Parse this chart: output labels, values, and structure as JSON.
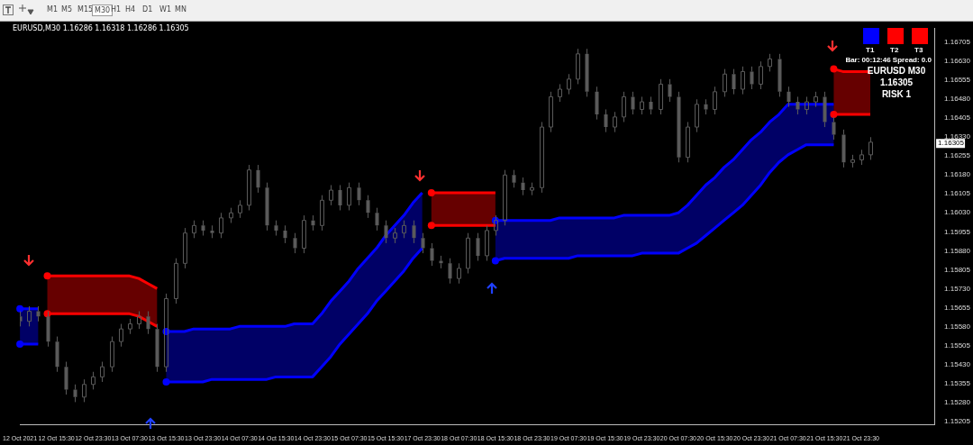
{
  "chart_data": {
    "type": "candlestick",
    "color": "#5a5a5a",
    "categories": [
      "12 Oct 2021",
      null,
      null,
      null,
      "12 Oct 15:30",
      null,
      null,
      null,
      "12 Oct 23:30",
      null,
      null,
      null,
      "13 Oct 07:30",
      null,
      null,
      null,
      "13 Oct 15:30",
      null,
      null,
      null,
      "13 Oct 23:30",
      null,
      null,
      null,
      "14 Oct 07:30",
      null,
      null,
      null,
      "14 Oct 15:30",
      null,
      null,
      null,
      "14 Oct 23:30",
      null,
      null,
      null,
      "15 Oct 07:30",
      null,
      null,
      null,
      "15 Oct 15:30",
      null,
      null,
      null,
      "17 Oct 23:30",
      null,
      null,
      null,
      "18 Oct 07:30",
      null,
      null,
      null,
      "18 Oct 15:30",
      null,
      null,
      null,
      "18 Oct 23:30",
      null,
      null,
      null,
      "19 Oct 07:30",
      null,
      null,
      null,
      "19 Oct 15:30",
      null,
      null,
      null,
      "19 Oct 23:30",
      null,
      null,
      null,
      "20 Oct 07:30",
      null,
      null,
      null,
      "20 Oct 15:30",
      null,
      null,
      null,
      "20 Oct 23:30",
      null,
      null,
      null,
      "21 Oct 07:30",
      null,
      null,
      null,
      "21 Oct 15:30",
      null,
      null,
      null,
      "21 Oct 23:30",
      null,
      null,
      null,
      null,
      null,
      null,
      null,
      null
    ],
    "ohlc": [
      [
        1.1562,
        1.1564,
        1.1558,
        1.156
      ],
      [
        1.156,
        1.1566,
        1.1558,
        1.1564
      ],
      [
        1.1564,
        1.1566,
        1.156,
        1.1562
      ],
      [
        1.1562,
        1.1564,
        1.155,
        1.1552
      ],
      [
        1.1552,
        1.1554,
        1.154,
        1.1542
      ],
      [
        1.1542,
        1.1544,
        1.1531,
        1.1533
      ],
      [
        1.1533,
        1.1535,
        1.1528,
        1.153
      ],
      [
        1.153,
        1.1537,
        1.1528,
        1.1535
      ],
      [
        1.1535,
        1.154,
        1.1533,
        1.1538
      ],
      [
        1.1538,
        1.1544,
        1.1536,
        1.1542
      ],
      [
        1.1542,
        1.1554,
        1.154,
        1.1552
      ],
      [
        1.1552,
        1.1559,
        1.155,
        1.1557
      ],
      [
        1.1557,
        1.1561,
        1.1555,
        1.1559
      ],
      [
        1.1559,
        1.1564,
        1.1557,
        1.1562
      ],
      [
        1.1562,
        1.1564,
        1.1555,
        1.1557
      ],
      [
        1.1557,
        1.1559,
        1.154,
        1.1542
      ],
      [
        1.1542,
        1.1571,
        1.154,
        1.1569
      ],
      [
        1.1569,
        1.1585,
        1.1567,
        1.1583
      ],
      [
        1.1583,
        1.1597,
        1.1581,
        1.1595
      ],
      [
        1.1595,
        1.16,
        1.1593,
        1.1598
      ],
      [
        1.1598,
        1.16,
        1.1594,
        1.1596
      ],
      [
        1.1596,
        1.1598,
        1.1593,
        1.1595
      ],
      [
        1.1595,
        1.1603,
        1.1593,
        1.1601
      ],
      [
        1.1601,
        1.1605,
        1.1599,
        1.1603
      ],
      [
        1.1603,
        1.1608,
        1.1601,
        1.1606
      ],
      [
        1.1606,
        1.1622,
        1.1604,
        1.162
      ],
      [
        1.162,
        1.1622,
        1.1611,
        1.1613
      ],
      [
        1.1613,
        1.1615,
        1.1596,
        1.1598
      ],
      [
        1.1598,
        1.16,
        1.1594,
        1.1596
      ],
      [
        1.1596,
        1.1598,
        1.1591,
        1.1593
      ],
      [
        1.1593,
        1.1595,
        1.1587,
        1.1589
      ],
      [
        1.1589,
        1.1602,
        1.1587,
        1.16
      ],
      [
        1.16,
        1.1602,
        1.1596,
        1.1598
      ],
      [
        1.1598,
        1.161,
        1.1596,
        1.1608
      ],
      [
        1.1608,
        1.1614,
        1.1606,
        1.1612
      ],
      [
        1.1612,
        1.1614,
        1.1604,
        1.1606
      ],
      [
        1.1606,
        1.1615,
        1.1604,
        1.1613
      ],
      [
        1.1613,
        1.1615,
        1.1606,
        1.1608
      ],
      [
        1.1608,
        1.161,
        1.1601,
        1.1603
      ],
      [
        1.1603,
        1.1605,
        1.1596,
        1.1598
      ],
      [
        1.1598,
        1.16,
        1.1591,
        1.1593
      ],
      [
        1.1593,
        1.1597,
        1.1591,
        1.1595
      ],
      [
        1.1595,
        1.16,
        1.1593,
        1.1598
      ],
      [
        1.1598,
        1.16,
        1.1591,
        1.1593
      ],
      [
        1.1593,
        1.1595,
        1.1587,
        1.1589
      ],
      [
        1.1589,
        1.1591,
        1.1582,
        1.1584
      ],
      [
        1.1584,
        1.1586,
        1.1581,
        1.1583
      ],
      [
        1.1583,
        1.1585,
        1.1575,
        1.1577
      ],
      [
        1.1577,
        1.1583,
        1.1575,
        1.1581
      ],
      [
        1.1581,
        1.1595,
        1.1579,
        1.1593
      ],
      [
        1.1593,
        1.1595,
        1.1584,
        1.1586
      ],
      [
        1.1586,
        1.1598,
        1.1584,
        1.1596
      ],
      [
        1.1596,
        1.1602,
        1.1594,
        1.16
      ],
      [
        1.16,
        1.162,
        1.1598,
        1.1618
      ],
      [
        1.1618,
        1.162,
        1.1613,
        1.1615
      ],
      [
        1.1615,
        1.1617,
        1.161,
        1.1612
      ],
      [
        1.1612,
        1.1615,
        1.161,
        1.1613
      ],
      [
        1.1613,
        1.1639,
        1.1611,
        1.1637
      ],
      [
        1.1637,
        1.1651,
        1.1635,
        1.1649
      ],
      [
        1.1649,
        1.1654,
        1.1647,
        1.1652
      ],
      [
        1.1652,
        1.1658,
        1.165,
        1.1656
      ],
      [
        1.1656,
        1.1668,
        1.1654,
        1.1666
      ],
      [
        1.1666,
        1.1668,
        1.1649,
        1.1651
      ],
      [
        1.1651,
        1.1653,
        1.164,
        1.1642
      ],
      [
        1.1642,
        1.1644,
        1.1635,
        1.1637
      ],
      [
        1.1637,
        1.1643,
        1.1635,
        1.1641
      ],
      [
        1.1641,
        1.1651,
        1.1639,
        1.1649
      ],
      [
        1.1649,
        1.1651,
        1.1642,
        1.1644
      ],
      [
        1.1644,
        1.1649,
        1.1642,
        1.1647
      ],
      [
        1.1647,
        1.1649,
        1.1642,
        1.1644
      ],
      [
        1.1644,
        1.1656,
        1.1642,
        1.1654
      ],
      [
        1.1654,
        1.1656,
        1.1647,
        1.1649
      ],
      [
        1.1649,
        1.1651,
        1.1623,
        1.1625
      ],
      [
        1.1625,
        1.1639,
        1.1623,
        1.1637
      ],
      [
        1.1637,
        1.1648,
        1.1635,
        1.1646
      ],
      [
        1.1646,
        1.1648,
        1.1642,
        1.1644
      ],
      [
        1.1644,
        1.1653,
        1.1642,
        1.1651
      ],
      [
        1.1651,
        1.166,
        1.1649,
        1.1658
      ],
      [
        1.1658,
        1.166,
        1.165,
        1.1652
      ],
      [
        1.1652,
        1.1661,
        1.165,
        1.1659
      ],
      [
        1.1659,
        1.1661,
        1.1652,
        1.1654
      ],
      [
        1.1654,
        1.1663,
        1.1652,
        1.1661
      ],
      [
        1.1661,
        1.1666,
        1.1659,
        1.1664
      ],
      [
        1.1664,
        1.1666,
        1.1649,
        1.1651
      ],
      [
        1.1651,
        1.1653,
        1.1645,
        1.1647
      ],
      [
        1.1647,
        1.1649,
        1.1642,
        1.1644
      ],
      [
        1.1644,
        1.1649,
        1.1642,
        1.1647
      ],
      [
        1.1647,
        1.1651,
        1.1645,
        1.1649
      ],
      [
        1.1649,
        1.1651,
        1.1637,
        1.1639
      ],
      [
        1.1639,
        1.1641,
        1.1632,
        1.1634
      ],
      [
        1.1634,
        1.1636,
        1.1621,
        1.1623
      ],
      [
        1.1623,
        1.1626,
        1.1621,
        1.1624
      ],
      [
        1.1624,
        1.1628,
        1.1622,
        1.1626
      ],
      [
        1.1626,
        1.1633,
        1.1624,
        1.1631
      ],
      null,
      null,
      null,
      null,
      null,
      null,
      null
    ],
    "series": [
      {
        "type": "line",
        "color": "#0000ff",
        "values": [
          1.1565,
          1.1565,
          1.1565,
          null,
          null,
          null,
          null,
          null,
          null,
          null,
          null,
          null,
          null,
          null,
          null,
          null,
          1.1556,
          1.1556,
          1.1556,
          1.1557,
          1.1557,
          1.1557,
          1.1557,
          1.1557,
          1.1558,
          1.1558,
          1.1558,
          1.1558,
          1.1558,
          1.1558,
          1.1559,
          1.1559,
          1.1559,
          1.1563,
          1.1568,
          1.1572,
          1.1576,
          1.1581,
          1.1585,
          1.1589,
          1.1594,
          1.1598,
          1.1602,
          1.1607,
          1.1611,
          null,
          null,
          null,
          null,
          null,
          null,
          null,
          1.16,
          1.16,
          1.16,
          1.16,
          1.16,
          1.16,
          1.16,
          1.1601,
          1.1601,
          1.1601,
          1.1601,
          1.1601,
          1.1601,
          1.1601,
          1.1602,
          1.1602,
          1.1602,
          1.1602,
          1.1602,
          1.1602,
          1.1603,
          1.1606,
          1.161,
          1.1614,
          1.1617,
          1.1621,
          1.1624,
          1.1628,
          1.1632,
          1.1635,
          1.1639,
          1.1642,
          1.1646,
          1.1646,
          1.1646,
          1.1646,
          1.1646,
          1.1646,
          null,
          null,
          null,
          null,
          null,
          null,
          null,
          null,
          null,
          null,
          null
        ],
        "upper": [
          1.1565,
          1.1565,
          1.1565,
          null,
          null,
          null,
          null,
          null,
          null,
          null,
          null,
          null,
          null,
          null,
          null,
          null,
          1.1556,
          1.1556,
          1.1556,
          1.1557,
          1.1557,
          1.1557,
          1.1557,
          1.1557,
          1.1558,
          1.1558,
          1.1558,
          1.1558,
          1.1558,
          1.1558,
          1.1559,
          1.1559,
          1.1559,
          1.1563,
          1.1568,
          1.1572,
          1.1576,
          1.1581,
          1.1585,
          1.1589,
          1.1594,
          1.1598,
          1.1602,
          1.1607,
          1.1611,
          null,
          null,
          null,
          null,
          null,
          null,
          null,
          1.16,
          1.16,
          1.16,
          1.16,
          1.16,
          1.16,
          1.16,
          1.1601,
          1.1601,
          1.1601,
          1.1601,
          1.1601,
          1.1601,
          1.1601,
          1.1602,
          1.1602,
          1.1602,
          1.1602,
          1.1602,
          1.1602,
          1.1603,
          1.1606,
          1.161,
          1.1614,
          1.1617,
          1.1621,
          1.1624,
          1.1628,
          1.1632,
          1.1635,
          1.1639,
          1.1642,
          1.1646,
          1.1646,
          1.1646,
          1.1646,
          1.1646,
          1.1646,
          null,
          null,
          null,
          null,
          null,
          null,
          null,
          null,
          null,
          null,
          null
        ],
        "lower": [
          1.1551,
          1.1551,
          1.1551,
          null,
          null,
          null,
          null,
          null,
          null,
          null,
          null,
          null,
          null,
          null,
          null,
          null,
          1.1536,
          1.1536,
          1.1536,
          1.1536,
          1.1536,
          1.1537,
          1.1537,
          1.1537,
          1.1537,
          1.1537,
          1.1537,
          1.1537,
          1.1538,
          1.1538,
          1.1538,
          1.1538,
          1.1538,
          1.1542,
          1.1546,
          1.1551,
          1.1555,
          1.1559,
          1.1563,
          1.1568,
          1.1572,
          1.1576,
          1.158,
          1.1585,
          1.1589,
          null,
          null,
          null,
          null,
          null,
          null,
          null,
          1.1584,
          1.1585,
          1.1585,
          1.1585,
          1.1585,
          1.1585,
          1.1585,
          1.1585,
          1.1585,
          1.1586,
          1.1586,
          1.1586,
          1.1586,
          1.1586,
          1.1586,
          1.1586,
          1.1587,
          1.1587,
          1.1587,
          1.1587,
          1.1587,
          1.1589,
          1.1591,
          1.1594,
          1.1597,
          1.16,
          1.1603,
          1.1606,
          1.161,
          1.1614,
          1.1619,
          1.1623,
          1.1626,
          1.1628,
          1.163,
          1.163,
          1.163,
          1.163,
          null,
          null,
          null,
          null,
          null,
          null,
          null,
          null,
          null,
          null,
          null
        ]
      },
      {
        "type": "line",
        "color": "#0000ff",
        "values": [
          1.1551,
          1.1551,
          1.1551,
          null,
          null,
          null,
          null,
          null,
          null,
          null,
          null,
          null,
          null,
          null,
          null,
          null,
          1.1536,
          1.1536,
          1.1536,
          1.1536,
          1.1536,
          1.1537,
          1.1537,
          1.1537,
          1.1537,
          1.1537,
          1.1537,
          1.1537,
          1.1538,
          1.1538,
          1.1538,
          1.1538,
          1.1538,
          1.1542,
          1.1546,
          1.1551,
          1.1555,
          1.1559,
          1.1563,
          1.1568,
          1.1572,
          1.1576,
          1.158,
          1.1585,
          1.1589,
          null,
          null,
          null,
          null,
          null,
          null,
          null,
          1.1584,
          1.1585,
          1.1585,
          1.1585,
          1.1585,
          1.1585,
          1.1585,
          1.1585,
          1.1585,
          1.1586,
          1.1586,
          1.1586,
          1.1586,
          1.1586,
          1.1586,
          1.1586,
          1.1587,
          1.1587,
          1.1587,
          1.1587,
          1.1587,
          1.1589,
          1.1591,
          1.1594,
          1.1597,
          1.16,
          1.1603,
          1.1606,
          1.161,
          1.1614,
          1.1619,
          1.1623,
          1.1626,
          1.1628,
          1.163,
          1.163,
          1.163,
          1.163,
          null,
          null,
          null,
          null,
          null,
          null,
          null,
          null,
          null,
          null,
          null
        ]
      },
      {
        "type": "line",
        "color": "#ff0000",
        "values": [
          null,
          null,
          null,
          1.1578,
          1.1578,
          1.1578,
          1.1578,
          1.1578,
          1.1578,
          1.1578,
          1.1578,
          1.1578,
          1.1578,
          1.1577,
          1.1575,
          1.1573,
          null,
          null,
          null,
          null,
          null,
          null,
          null,
          null,
          null,
          null,
          null,
          null,
          null,
          null,
          null,
          null,
          null,
          null,
          null,
          null,
          null,
          null,
          null,
          null,
          null,
          null,
          null,
          null,
          null,
          1.1611,
          1.1611,
          1.1611,
          1.1611,
          1.1611,
          1.1611,
          1.1611,
          1.1611,
          null,
          null,
          null,
          null,
          null,
          null,
          null,
          null,
          null,
          null,
          null,
          null,
          null,
          null,
          null,
          null,
          null,
          null,
          null,
          null,
          null,
          null,
          null,
          null,
          null,
          null,
          null,
          null,
          null,
          null,
          null,
          null,
          null,
          null,
          null,
          null,
          1.166,
          1.1659,
          1.1659,
          1.1659,
          1.1659,
          null,
          null,
          null,
          null,
          null,
          null,
          null
        ],
        "upper": [
          null,
          null,
          null,
          1.1578,
          1.1578,
          1.1578,
          1.1578,
          1.1578,
          1.1578,
          1.1578,
          1.1578,
          1.1578,
          1.1578,
          1.1577,
          1.1575,
          1.1573,
          null,
          null,
          null,
          null,
          null,
          null,
          null,
          null,
          null,
          null,
          null,
          null,
          null,
          null,
          null,
          null,
          null,
          null,
          null,
          null,
          null,
          null,
          null,
          null,
          null,
          null,
          null,
          null,
          null,
          1.1611,
          1.1611,
          1.1611,
          1.1611,
          1.1611,
          1.1611,
          1.1611,
          1.1611,
          null,
          null,
          null,
          null,
          null,
          null,
          null,
          null,
          null,
          null,
          null,
          null,
          null,
          null,
          null,
          null,
          null,
          null,
          null,
          null,
          null,
          null,
          null,
          null,
          null,
          null,
          null,
          null,
          null,
          null,
          null,
          null,
          null,
          null,
          null,
          null,
          1.166,
          1.1659,
          1.1659,
          1.1659,
          1.1659,
          null,
          null,
          null,
          null,
          null,
          null,
          null
        ],
        "lower": [
          null,
          null,
          null,
          1.1563,
          1.1563,
          1.1563,
          1.1563,
          1.1563,
          1.1563,
          1.1563,
          1.1563,
          1.1563,
          1.1563,
          1.1562,
          1.156,
          1.1558,
          null,
          null,
          null,
          null,
          null,
          null,
          null,
          null,
          null,
          null,
          null,
          null,
          null,
          null,
          null,
          null,
          null,
          null,
          null,
          null,
          null,
          null,
          null,
          null,
          null,
          null,
          null,
          null,
          null,
          1.1598,
          1.1598,
          1.1598,
          1.1598,
          1.1598,
          1.1598,
          1.1598,
          1.1598,
          null,
          null,
          null,
          null,
          null,
          null,
          null,
          null,
          null,
          null,
          null,
          null,
          null,
          null,
          null,
          null,
          null,
          null,
          null,
          null,
          null,
          null,
          null,
          null,
          null,
          null,
          null,
          null,
          null,
          null,
          null,
          null,
          null,
          null,
          null,
          null,
          1.1642,
          1.1642,
          1.1642,
          1.1642,
          1.1642,
          null,
          null,
          null,
          null,
          null,
          null,
          null
        ]
      },
      {
        "type": "line",
        "color": "#ff0000",
        "values": [
          null,
          null,
          null,
          1.1563,
          1.1563,
          1.1563,
          1.1563,
          1.1563,
          1.1563,
          1.1563,
          1.1563,
          1.1563,
          1.1563,
          1.1562,
          1.156,
          1.1558,
          null,
          null,
          null,
          null,
          null,
          null,
          null,
          null,
          null,
          null,
          null,
          null,
          null,
          null,
          null,
          null,
          null,
          null,
          null,
          null,
          null,
          null,
          null,
          null,
          null,
          null,
          null,
          null,
          null,
          1.1598,
          1.1598,
          1.1598,
          1.1598,
          1.1598,
          1.1598,
          1.1598,
          1.1598,
          null,
          null,
          null,
          null,
          null,
          null,
          null,
          null,
          null,
          null,
          null,
          null,
          null,
          null,
          null,
          null,
          null,
          null,
          null,
          null,
          null,
          null,
          null,
          null,
          null,
          null,
          null,
          null,
          null,
          null,
          null,
          null,
          null,
          null,
          null,
          null,
          1.1642,
          1.1642,
          1.1642,
          1.1642,
          1.1642,
          null,
          null,
          null,
          null,
          null,
          null,
          null
        ]
      }
    ],
    "ylim": [
      1.1519,
      1.1676
    ],
    "yticks": [
      1.15205,
      {
        "value": 1.1528,
        "label": "1.15280"
      },
      1.15355,
      {
        "value": 1.1543,
        "label": "1.15430"
      },
      1.15505,
      {
        "value": 1.1558,
        "label": "1.15580"
      },
      1.15655,
      {
        "value": 1.1573,
        "label": "1.15730"
      },
      1.15805,
      {
        "value": 1.1588,
        "label": "1.15880"
      },
      1.15955,
      {
        "value": 1.1603,
        "label": "1.16030"
      },
      1.16105,
      {
        "value": 1.1618,
        "label": "1.16180"
      },
      1.16255,
      {
        "value": 1.1633,
        "label": "1.16330"
      },
      1.16405,
      {
        "value": 1.1648,
        "label": "1.16480"
      },
      1.16555,
      {
        "value": 1.1663,
        "label": "1.16630"
      },
      1.16705
    ],
    "annotations": [
      "EURUSD,M30  1.16286 1.16318 1.16286 1.16305",
      "T1",
      "T2",
      "T3",
      "Bar: 00:12:46 Spread: 0.0",
      "EURUSD M30",
      "1.16305",
      "RISK 1",
      "M1",
      "M5",
      "M15",
      "M30",
      "H1",
      "H4",
      "D1",
      "W1",
      "MN",
      {
        "text": "1.16305",
        "y": 1.16305
      }
    ]
  }
}
